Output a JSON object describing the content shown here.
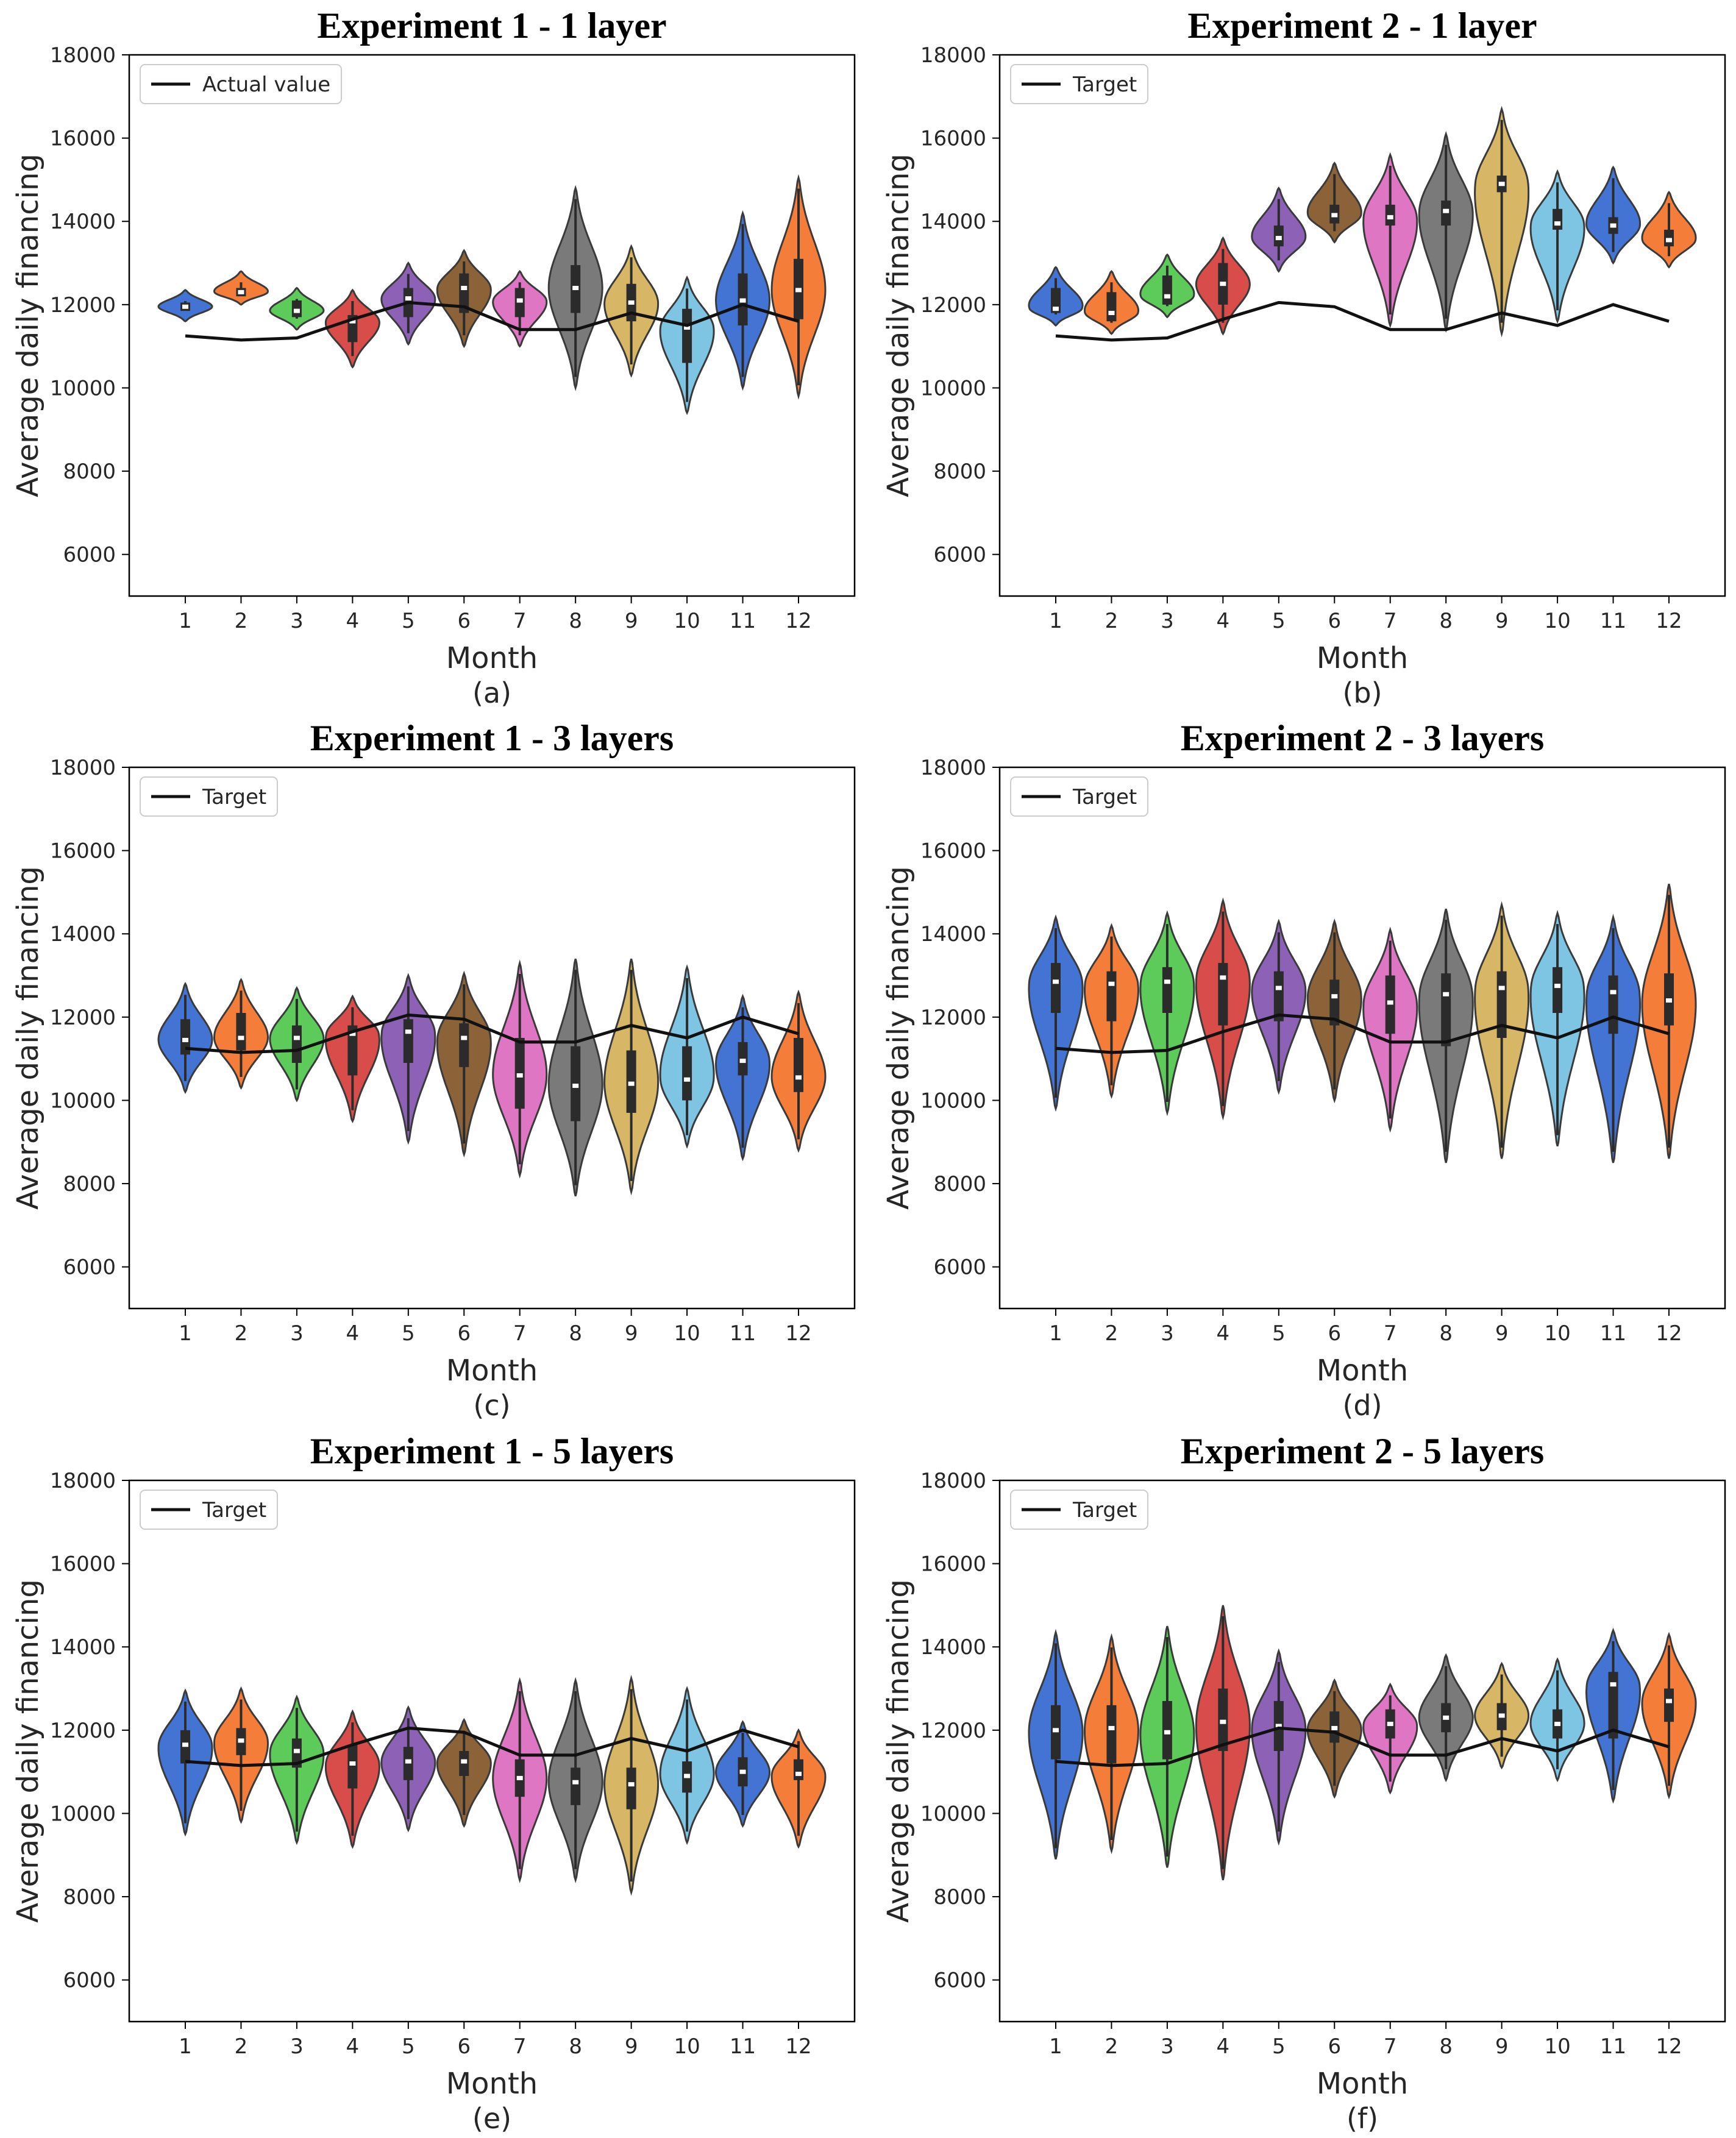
{
  "figure": {
    "palette": [
      "#4374d3",
      "#f47d3a",
      "#5ccb5a",
      "#d84c4a",
      "#8d62b6",
      "#8c6239",
      "#df76c3",
      "#7a7a7a",
      "#d7b765",
      "#7ec4e3",
      "#4374d3",
      "#f47d3a"
    ],
    "edge_color": "#3a3a3a",
    "line_color": "#111111"
  },
  "chart_data": [
    {
      "id": "a",
      "type": "violin",
      "title": "Experiment 1 - 1 layer",
      "caption": "(a)",
      "xlabel": "Month",
      "ylabel": "Average daily financing",
      "categories": [
        "1",
        "2",
        "3",
        "4",
        "5",
        "6",
        "7",
        "8",
        "9",
        "10",
        "11",
        "12"
      ],
      "ylim": [
        5000,
        18000
      ],
      "yticks": [
        "6000",
        "8000",
        "10000",
        "12000",
        "14000",
        "16000",
        "18000"
      ],
      "legend": {
        "label": "Actual value",
        "loc": "upper-left"
      },
      "line": [
        11250,
        11150,
        11200,
        11650,
        12050,
        11950,
        11400,
        11400,
        11800,
        11500,
        12000,
        11600
      ],
      "violins": [
        {
          "min": 11600,
          "max": 12350,
          "q1": 11850,
          "med": 11950,
          "q3": 12050
        },
        {
          "min": 12000,
          "max": 12800,
          "q1": 12200,
          "med": 12300,
          "q3": 12400
        },
        {
          "min": 11400,
          "max": 12400,
          "q1": 11700,
          "med": 11850,
          "q3": 12100
        },
        {
          "min": 10500,
          "max": 12350,
          "q1": 11100,
          "med": 11600,
          "q3": 11750
        },
        {
          "min": 11050,
          "max": 13000,
          "q1": 11700,
          "med": 12150,
          "q3": 12400
        },
        {
          "min": 11000,
          "max": 13300,
          "q1": 11800,
          "med": 12400,
          "q3": 12750
        },
        {
          "min": 11000,
          "max": 12800,
          "q1": 11700,
          "med": 12100,
          "q3": 12400
        },
        {
          "min": 10000,
          "max": 14800,
          "q1": 11800,
          "med": 12400,
          "q3": 12950
        },
        {
          "min": 10300,
          "max": 13400,
          "q1": 11600,
          "med": 12050,
          "q3": 12500
        },
        {
          "min": 9400,
          "max": 12650,
          "q1": 10600,
          "med": 11450,
          "q3": 11900
        },
        {
          "min": 10000,
          "max": 14200,
          "q1": 11500,
          "med": 12100,
          "q3": 12750
        },
        {
          "min": 9800,
          "max": 15050,
          "q1": 11650,
          "med": 12350,
          "q3": 13100
        }
      ]
    },
    {
      "id": "b",
      "type": "violin",
      "title": "Experiment 2 - 1 layer",
      "caption": "(b)",
      "xlabel": "Month",
      "ylabel": "Average daily financing",
      "categories": [
        "1",
        "2",
        "3",
        "4",
        "5",
        "6",
        "7",
        "8",
        "9",
        "10",
        "11",
        "12"
      ],
      "ylim": [
        5000,
        18000
      ],
      "yticks": [
        "6000",
        "8000",
        "10000",
        "12000",
        "14000",
        "16000",
        "18000"
      ],
      "legend": {
        "label": "Target",
        "loc": "upper-left"
      },
      "line": [
        11250,
        11150,
        11200,
        11650,
        12050,
        11950,
        11400,
        11400,
        11800,
        11500,
        12000,
        11600
      ],
      "violins": [
        {
          "min": 11500,
          "max": 12900,
          "q1": 11800,
          "med": 11900,
          "q3": 12400
        },
        {
          "min": 11300,
          "max": 12800,
          "q1": 11600,
          "med": 11800,
          "q3": 12300
        },
        {
          "min": 11700,
          "max": 13200,
          "q1": 12000,
          "med": 12200,
          "q3": 12700
        },
        {
          "min": 11300,
          "max": 13600,
          "q1": 12000,
          "med": 12500,
          "q3": 13000
        },
        {
          "min": 12800,
          "max": 14800,
          "q1": 13400,
          "med": 13600,
          "q3": 13900
        },
        {
          "min": 13500,
          "max": 15400,
          "q1": 13950,
          "med": 14150,
          "q3": 14400
        },
        {
          "min": 11500,
          "max": 15600,
          "q1": 13900,
          "med": 14100,
          "q3": 14400
        },
        {
          "min": 11400,
          "max": 16100,
          "q1": 13900,
          "med": 14250,
          "q3": 14500
        },
        {
          "min": 11300,
          "max": 16700,
          "q1": 14700,
          "med": 14900,
          "q3": 15100
        },
        {
          "min": 11600,
          "max": 15200,
          "q1": 13800,
          "med": 13950,
          "q3": 14300
        },
        {
          "min": 13000,
          "max": 15300,
          "q1": 13700,
          "med": 13900,
          "q3": 14100
        },
        {
          "min": 12900,
          "max": 14700,
          "q1": 13400,
          "med": 13550,
          "q3": 13800
        }
      ]
    },
    {
      "id": "c",
      "type": "violin",
      "title": "Experiment 1 - 3 layers",
      "caption": "(c)",
      "xlabel": "Month",
      "ylabel": "Average daily financing",
      "categories": [
        "1",
        "2",
        "3",
        "4",
        "5",
        "6",
        "7",
        "8",
        "9",
        "10",
        "11",
        "12"
      ],
      "ylim": [
        5000,
        18000
      ],
      "yticks": [
        "6000",
        "8000",
        "10000",
        "12000",
        "14000",
        "16000",
        "18000"
      ],
      "legend": {
        "label": "Target",
        "loc": "upper-left"
      },
      "line": [
        11250,
        11150,
        11200,
        11650,
        12050,
        11950,
        11400,
        11400,
        11800,
        11500,
        12000,
        11600
      ],
      "violins": [
        {
          "min": 10200,
          "max": 12800,
          "q1": 11100,
          "med": 11450,
          "q3": 11950
        },
        {
          "min": 10300,
          "max": 12900,
          "q1": 11200,
          "med": 11500,
          "q3": 12100
        },
        {
          "min": 10000,
          "max": 12700,
          "q1": 10900,
          "med": 11500,
          "q3": 11800
        },
        {
          "min": 9500,
          "max": 12500,
          "q1": 10600,
          "med": 11600,
          "q3": 11800
        },
        {
          "min": 9000,
          "max": 13000,
          "q1": 10900,
          "med": 11650,
          "q3": 11950
        },
        {
          "min": 8700,
          "max": 13050,
          "q1": 10800,
          "med": 11500,
          "q3": 11850
        },
        {
          "min": 8200,
          "max": 13300,
          "q1": 9800,
          "med": 10600,
          "q3": 11500
        },
        {
          "min": 7700,
          "max": 13400,
          "q1": 9500,
          "med": 10350,
          "q3": 11300
        },
        {
          "min": 7800,
          "max": 13400,
          "q1": 9700,
          "med": 10400,
          "q3": 11200
        },
        {
          "min": 8900,
          "max": 13200,
          "q1": 10000,
          "med": 10500,
          "q3": 11300
        },
        {
          "min": 8600,
          "max": 12500,
          "q1": 10600,
          "med": 10950,
          "q3": 11400
        },
        {
          "min": 8800,
          "max": 12600,
          "q1": 10200,
          "med": 10550,
          "q3": 11500
        }
      ]
    },
    {
      "id": "d",
      "type": "violin",
      "title": "Experiment 2 - 3 layers",
      "caption": "(d)",
      "xlabel": "Month",
      "ylabel": "Average daily financing",
      "categories": [
        "1",
        "2",
        "3",
        "4",
        "5",
        "6",
        "7",
        "8",
        "9",
        "10",
        "11",
        "12"
      ],
      "ylim": [
        5000,
        18000
      ],
      "yticks": [
        "6000",
        "8000",
        "10000",
        "12000",
        "14000",
        "16000",
        "18000"
      ],
      "legend": {
        "label": "Target",
        "loc": "upper-left"
      },
      "line": [
        11250,
        11150,
        11200,
        11650,
        12050,
        11950,
        11400,
        11400,
        11800,
        11500,
        12000,
        11600
      ],
      "violins": [
        {
          "min": 9800,
          "max": 14400,
          "q1": 12100,
          "med": 12850,
          "q3": 13300
        },
        {
          "min": 10100,
          "max": 14200,
          "q1": 11900,
          "med": 12800,
          "q3": 13100
        },
        {
          "min": 9700,
          "max": 14500,
          "q1": 12100,
          "med": 12850,
          "q3": 13200
        },
        {
          "min": 9600,
          "max": 14800,
          "q1": 11800,
          "med": 12950,
          "q3": 13300
        },
        {
          "min": 10200,
          "max": 14300,
          "q1": 11900,
          "med": 12700,
          "q3": 13100
        },
        {
          "min": 10000,
          "max": 14300,
          "q1": 11800,
          "med": 12500,
          "q3": 12900
        },
        {
          "min": 9300,
          "max": 14100,
          "q1": 11600,
          "med": 12350,
          "q3": 13000
        },
        {
          "min": 8500,
          "max": 14600,
          "q1": 11300,
          "med": 12550,
          "q3": 13050
        },
        {
          "min": 8600,
          "max": 14700,
          "q1": 11500,
          "med": 12700,
          "q3": 13100
        },
        {
          "min": 8900,
          "max": 14500,
          "q1": 12100,
          "med": 12750,
          "q3": 13200
        },
        {
          "min": 8500,
          "max": 14400,
          "q1": 11600,
          "med": 12600,
          "q3": 13000
        },
        {
          "min": 8600,
          "max": 15200,
          "q1": 11800,
          "med": 12400,
          "q3": 13050
        }
      ]
    },
    {
      "id": "e",
      "type": "violin",
      "title": "Experiment 1 - 5 layers",
      "caption": "(e)",
      "xlabel": "Month",
      "ylabel": "Average daily financing",
      "categories": [
        "1",
        "2",
        "3",
        "4",
        "5",
        "6",
        "7",
        "8",
        "9",
        "10",
        "11",
        "12"
      ],
      "ylim": [
        5000,
        18000
      ],
      "yticks": [
        "6000",
        "8000",
        "10000",
        "12000",
        "14000",
        "16000",
        "18000"
      ],
      "legend": {
        "label": "Target",
        "loc": "upper-left"
      },
      "line": [
        11250,
        11150,
        11200,
        11650,
        12050,
        11950,
        11400,
        11400,
        11800,
        11500,
        12000,
        11600
      ],
      "violins": [
        {
          "min": 9500,
          "max": 12950,
          "q1": 11200,
          "med": 11650,
          "q3": 12000
        },
        {
          "min": 9800,
          "max": 13000,
          "q1": 11400,
          "med": 11750,
          "q3": 12050
        },
        {
          "min": 9300,
          "max": 12800,
          "q1": 11100,
          "med": 11500,
          "q3": 11800
        },
        {
          "min": 9200,
          "max": 12450,
          "q1": 10600,
          "med": 11200,
          "q3": 11650
        },
        {
          "min": 9600,
          "max": 12550,
          "q1": 10800,
          "med": 11250,
          "q3": 11600
        },
        {
          "min": 9700,
          "max": 12250,
          "q1": 10900,
          "med": 11250,
          "q3": 11500
        },
        {
          "min": 8400,
          "max": 13200,
          "q1": 10400,
          "med": 10850,
          "q3": 11300
        },
        {
          "min": 8400,
          "max": 13200,
          "q1": 10200,
          "med": 10750,
          "q3": 11100
        },
        {
          "min": 8100,
          "max": 13250,
          "q1": 10100,
          "med": 10700,
          "q3": 11100
        },
        {
          "min": 9300,
          "max": 13000,
          "q1": 10500,
          "med": 10900,
          "q3": 11250
        },
        {
          "min": 9700,
          "max": 12200,
          "q1": 10650,
          "med": 11000,
          "q3": 11350
        },
        {
          "min": 9200,
          "max": 12000,
          "q1": 10800,
          "med": 10950,
          "q3": 11300
        }
      ]
    },
    {
      "id": "f",
      "type": "violin",
      "title": "Experiment 2 - 5 layers",
      "caption": "(f)",
      "xlabel": "Month",
      "ylabel": "Average daily financing",
      "categories": [
        "1",
        "2",
        "3",
        "4",
        "5",
        "6",
        "7",
        "8",
        "9",
        "10",
        "11",
        "12"
      ],
      "ylim": [
        5000,
        18000
      ],
      "yticks": [
        "6000",
        "8000",
        "10000",
        "12000",
        "14000",
        "16000",
        "18000"
      ],
      "legend": {
        "label": "Target",
        "loc": "upper-left"
      },
      "line": [
        11250,
        11150,
        11200,
        11650,
        12050,
        11950,
        11400,
        11400,
        11800,
        11500,
        12000,
        11600
      ],
      "violins": [
        {
          "min": 8900,
          "max": 14350,
          "q1": 11300,
          "med": 12000,
          "q3": 12600
        },
        {
          "min": 9100,
          "max": 14250,
          "q1": 11200,
          "med": 12050,
          "q3": 12600
        },
        {
          "min": 8700,
          "max": 14500,
          "q1": 11300,
          "med": 11950,
          "q3": 12700
        },
        {
          "min": 8400,
          "max": 15000,
          "q1": 11500,
          "med": 12200,
          "q3": 13000
        },
        {
          "min": 9300,
          "max": 13900,
          "q1": 11500,
          "med": 12100,
          "q3": 12700
        },
        {
          "min": 10400,
          "max": 13200,
          "q1": 11700,
          "med": 12050,
          "q3": 12450
        },
        {
          "min": 10500,
          "max": 13100,
          "q1": 11800,
          "med": 12150,
          "q3": 12500
        },
        {
          "min": 10800,
          "max": 13800,
          "q1": 11950,
          "med": 12300,
          "q3": 12650
        },
        {
          "min": 11100,
          "max": 13600,
          "q1": 12000,
          "med": 12350,
          "q3": 12650
        },
        {
          "min": 10800,
          "max": 13700,
          "q1": 11800,
          "med": 12150,
          "q3": 12500
        },
        {
          "min": 10300,
          "max": 14400,
          "q1": 11800,
          "med": 13100,
          "q3": 13400
        },
        {
          "min": 10400,
          "max": 14300,
          "q1": 12200,
          "med": 12700,
          "q3": 13000
        }
      ]
    }
  ]
}
